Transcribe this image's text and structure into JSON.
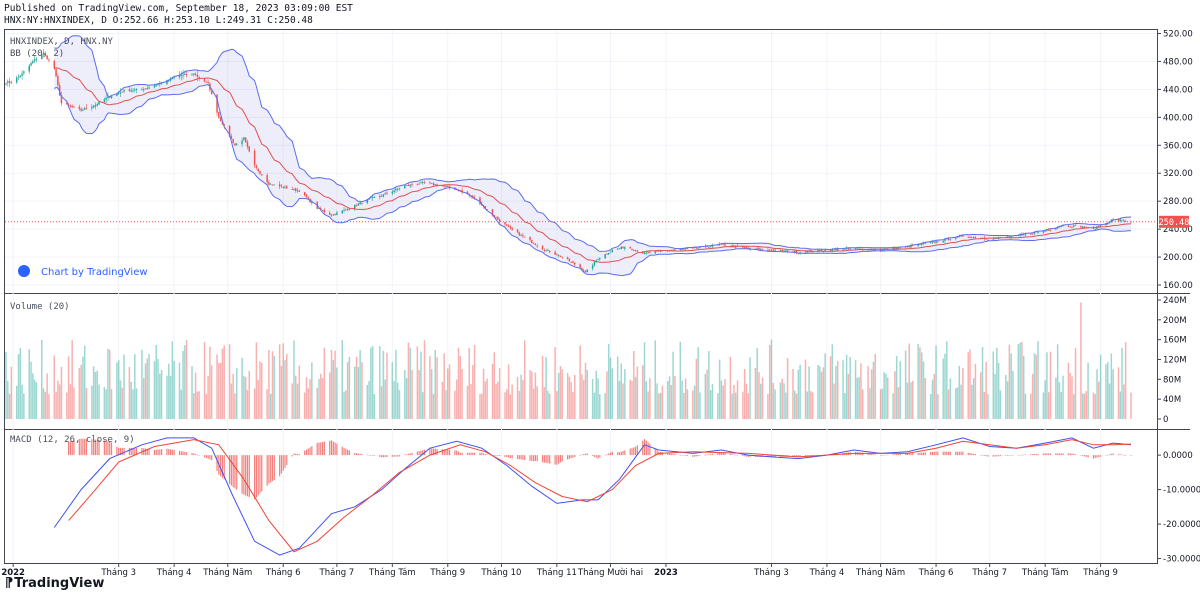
{
  "header": {
    "published": "Published on TradingView.com, September 18, 2023 03:09:00 EST",
    "ohlc": "HNX:NY:HNXINDEX, D O:252.66 H:253.10 L:249.31 C:250.48"
  },
  "panes": {
    "price_label": "HNXINDEX, D, HNX.NY",
    "bb_label": "BB (20, 2)",
    "volume_label": "Volume (20)",
    "macd_label": "MACD (12, 26, close, 9)",
    "watermark": "Chart by TradingView"
  },
  "last_price": "250.48",
  "brand": "TradingView",
  "colors": {
    "up": "#26a69a",
    "down": "#ef5350",
    "bb_band": "#5b6cf0",
    "bb_basis": "#e05050",
    "macd_line": "#3f51f5",
    "signal_line": "#f44336"
  },
  "axes": {
    "price_ticks": [
      "520.00",
      "480.00",
      "440.00",
      "400.00",
      "360.00",
      "320.00",
      "280.00",
      "240.00",
      "200.00",
      "160.00"
    ],
    "volume_ticks": [
      "240M",
      "200M",
      "160M",
      "120M",
      "80M",
      "40M",
      "0"
    ],
    "macd_ticks": [
      "0.0000",
      "-10.0000",
      "-20.0000",
      "-30.0000"
    ],
    "x_ticks": [
      "2022",
      "Tháng 3",
      "Tháng 4",
      "Tháng Năm",
      "Tháng 6",
      "Tháng 7",
      "Tháng Tám",
      "Tháng 9",
      "Tháng 10",
      "Tháng 11",
      "Tháng Mười hai",
      "2023",
      "Tháng 3",
      "Tháng 4",
      "Tháng Năm",
      "Tháng 6",
      "Tháng 7",
      "Tháng Tám",
      "Tháng 9"
    ]
  },
  "chart_data": [
    {
      "type": "candlestick",
      "title": "HNXINDEX, D, HNX.NY",
      "ylim": [
        150,
        525
      ],
      "x": [
        "2022-01",
        "2022-02",
        "2022-03",
        "2022-04",
        "2022-05",
        "2022-06",
        "2022-07",
        "2022-08",
        "2022-09",
        "2022-10",
        "2022-11",
        "2022-12",
        "2023-01",
        "2023-02",
        "2023-03",
        "2023-04",
        "2023-05",
        "2023-06",
        "2023-07",
        "2023-08",
        "2023-09"
      ],
      "close_path": [
        [
          "2021-12-31",
          450
        ],
        [
          "2022-01-06",
          462
        ],
        [
          "2022-01-12",
          480
        ],
        [
          "2022-01-18",
          492
        ],
        [
          "2022-01-24",
          470
        ],
        [
          "2022-01-28",
          420
        ],
        [
          "2022-02-08",
          410
        ],
        [
          "2022-02-16",
          418
        ],
        [
          "2022-02-24",
          430
        ],
        [
          "2022-03-04",
          438
        ],
        [
          "2022-03-14",
          440
        ],
        [
          "2022-03-24",
          448
        ],
        [
          "2022-04-04",
          460
        ],
        [
          "2022-04-12",
          462
        ],
        [
          "2022-04-20",
          448
        ],
        [
          "2022-04-26",
          400
        ],
        [
          "2022-05-05",
          360
        ],
        [
          "2022-05-10",
          370
        ],
        [
          "2022-05-16",
          330
        ],
        [
          "2022-05-24",
          305
        ],
        [
          "2022-06-01",
          300
        ],
        [
          "2022-06-10",
          295
        ],
        [
          "2022-06-20",
          270
        ],
        [
          "2022-06-28",
          260
        ],
        [
          "2022-07-08",
          270
        ],
        [
          "2022-07-18",
          282
        ],
        [
          "2022-07-28",
          290
        ],
        [
          "2022-08-08",
          302
        ],
        [
          "2022-08-18",
          306
        ],
        [
          "2022-08-28",
          303
        ],
        [
          "2022-09-08",
          295
        ],
        [
          "2022-09-16",
          284
        ],
        [
          "2022-09-26",
          260
        ],
        [
          "2022-10-06",
          240
        ],
        [
          "2022-10-14",
          228
        ],
        [
          "2022-10-24",
          212
        ],
        [
          "2022-11-04",
          200
        ],
        [
          "2022-11-14",
          185
        ],
        [
          "2022-11-17",
          178
        ],
        [
          "2022-11-24",
          198
        ],
        [
          "2022-12-02",
          210
        ],
        [
          "2022-12-10",
          215
        ],
        [
          "2022-12-20",
          205
        ],
        [
          "2023-01-03",
          210
        ],
        [
          "2023-01-16",
          212
        ],
        [
          "2023-02-01",
          218
        ],
        [
          "2023-02-16",
          212
        ],
        [
          "2023-03-01",
          210
        ],
        [
          "2023-03-16",
          207
        ],
        [
          "2023-04-01",
          210
        ],
        [
          "2023-04-16",
          212
        ],
        [
          "2023-05-01",
          210
        ],
        [
          "2023-05-16",
          215
        ],
        [
          "2023-06-01",
          222
        ],
        [
          "2023-06-16",
          230
        ],
        [
          "2023-07-01",
          226
        ],
        [
          "2023-07-16",
          230
        ],
        [
          "2023-08-01",
          238
        ],
        [
          "2023-08-10",
          245
        ],
        [
          "2023-08-20",
          244
        ],
        [
          "2023-08-28",
          240
        ],
        [
          "2023-09-08",
          254
        ],
        [
          "2023-09-18",
          250.48
        ]
      ],
      "last_close": 250.48
    },
    {
      "type": "bar",
      "title": "Volume (20)",
      "ylim": [
        0,
        250000000
      ],
      "typical_range": [
        50000000,
        160000000
      ],
      "peak": {
        "x": "2023-08-21",
        "value": 235000000
      }
    },
    {
      "type": "line",
      "title": "MACD (12, 26, close, 9)",
      "ylim": [
        -31,
        7
      ],
      "macd_path": [
        [
          "2022-01-24",
          -21
        ],
        [
          "2022-02-08",
          -10
        ],
        [
          "2022-02-24",
          -1
        ],
        [
          "2022-03-14",
          3
        ],
        [
          "2022-03-28",
          5
        ],
        [
          "2022-04-12",
          5
        ],
        [
          "2022-04-22",
          2
        ],
        [
          "2022-05-04",
          -12
        ],
        [
          "2022-05-16",
          -25
        ],
        [
          "2022-05-30",
          -29
        ],
        [
          "2022-06-10",
          -27
        ],
        [
          "2022-06-28",
          -17
        ],
        [
          "2022-07-11",
          -15
        ],
        [
          "2022-07-26",
          -10
        ],
        [
          "2022-08-08",
          -4
        ],
        [
          "2022-08-22",
          2
        ],
        [
          "2022-09-06",
          4
        ],
        [
          "2022-09-20",
          2
        ],
        [
          "2022-10-04",
          -3
        ],
        [
          "2022-10-18",
          -9
        ],
        [
          "2022-11-01",
          -14
        ],
        [
          "2022-11-15",
          -13
        ],
        [
          "2022-11-24",
          -13
        ],
        [
          "2022-12-06",
          -7
        ],
        [
          "2022-12-20",
          3
        ],
        [
          "2022-12-28",
          1.5
        ],
        [
          "2023-01-16",
          0.5
        ],
        [
          "2023-02-01",
          1.5
        ],
        [
          "2023-02-16",
          0
        ],
        [
          "2023-03-01",
          -0.5
        ],
        [
          "2023-03-16",
          -1
        ],
        [
          "2023-04-01",
          0
        ],
        [
          "2023-04-16",
          1.5
        ],
        [
          "2023-05-01",
          0.5
        ],
        [
          "2023-05-16",
          1
        ],
        [
          "2023-06-01",
          3
        ],
        [
          "2023-06-16",
          5
        ],
        [
          "2023-07-01",
          2.5
        ],
        [
          "2023-07-16",
          2
        ],
        [
          "2023-08-01",
          3.5
        ],
        [
          "2023-08-16",
          5
        ],
        [
          "2023-08-28",
          2
        ],
        [
          "2023-09-08",
          3.5
        ],
        [
          "2023-09-18",
          3
        ]
      ],
      "signal_path": [
        [
          "2022-02-01",
          -19
        ],
        [
          "2022-02-16",
          -10
        ],
        [
          "2022-03-01",
          -2
        ],
        [
          "2022-03-21",
          2.5
        ],
        [
          "2022-04-12",
          4.5
        ],
        [
          "2022-04-26",
          3
        ],
        [
          "2022-05-10",
          -7
        ],
        [
          "2022-05-24",
          -19
        ],
        [
          "2022-06-07",
          -28
        ],
        [
          "2022-06-20",
          -25
        ],
        [
          "2022-07-05",
          -18
        ],
        [
          "2022-07-20",
          -12
        ],
        [
          "2022-08-05",
          -5
        ],
        [
          "2022-08-22",
          0
        ],
        [
          "2022-09-08",
          3
        ],
        [
          "2022-09-22",
          1
        ],
        [
          "2022-10-06",
          -3
        ],
        [
          "2022-10-20",
          -8
        ],
        [
          "2022-11-04",
          -12
        ],
        [
          "2022-11-18",
          -13.5
        ],
        [
          "2022-12-02",
          -10
        ],
        [
          "2022-12-15",
          -3
        ],
        [
          "2022-12-28",
          0.5
        ],
        [
          "2023-01-16",
          1
        ],
        [
          "2023-02-16",
          0.5
        ],
        [
          "2023-03-16",
          -0.5
        ],
        [
          "2023-04-16",
          0.5
        ],
        [
          "2023-05-16",
          0.5
        ],
        [
          "2023-06-01",
          2
        ],
        [
          "2023-06-16",
          4
        ],
        [
          "2023-07-01",
          3
        ],
        [
          "2023-07-16",
          2
        ],
        [
          "2023-08-01",
          3
        ],
        [
          "2023-08-16",
          4.5
        ],
        [
          "2023-08-28",
          3
        ],
        [
          "2023-09-08",
          3
        ],
        [
          "2023-09-18",
          3.2
        ]
      ]
    }
  ]
}
